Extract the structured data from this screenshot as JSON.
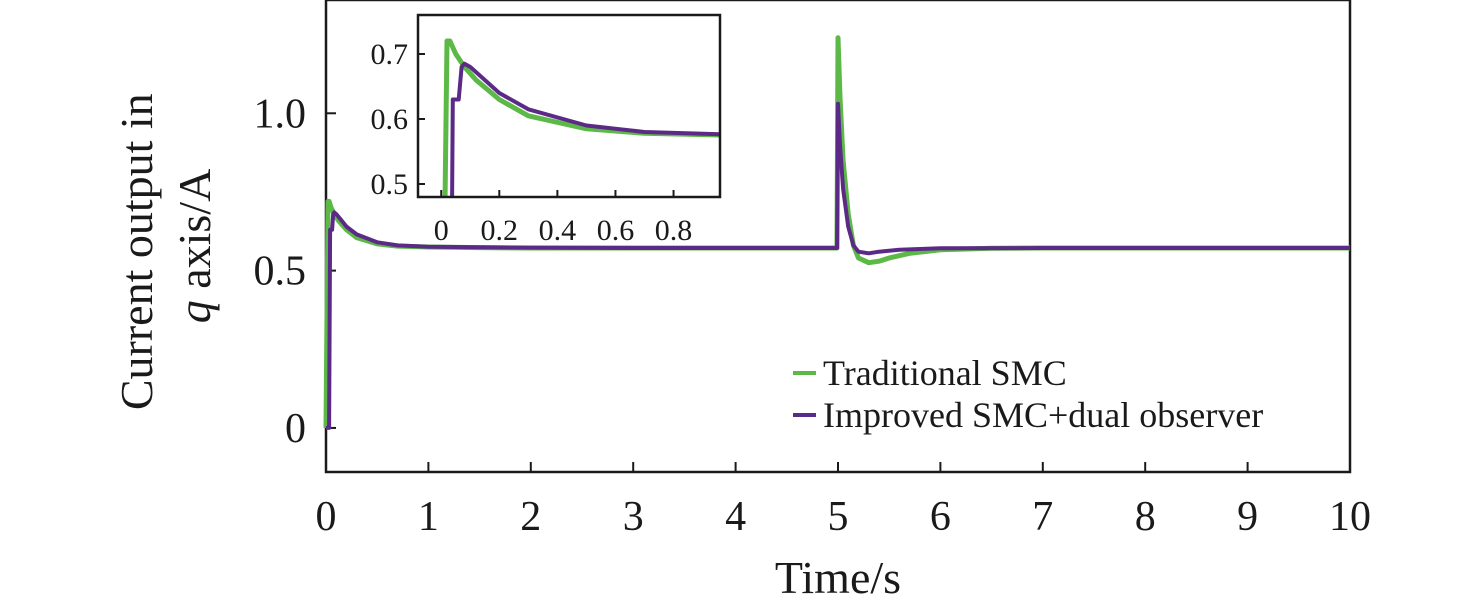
{
  "chart_data": {
    "type": "line",
    "xlabel": "Time/s",
    "ylabel": {
      "line1": "Current output in",
      "line2_italic": "q",
      "line2_rest": " axis/A"
    },
    "xlim": [
      0,
      10
    ],
    "ylim": [
      -0.14,
      1.36
    ],
    "x_ticks": [
      0,
      1,
      2,
      3,
      4,
      5,
      6,
      7,
      8,
      9,
      10
    ],
    "x_tick_labels": [
      "0",
      "1",
      "2",
      "3",
      "4",
      "5",
      "6",
      "7",
      "8",
      "9",
      "10"
    ],
    "y_ticks": [
      0,
      0.5,
      1.0
    ],
    "y_tick_labels": [
      "0",
      "0.5",
      "1.0"
    ],
    "grid": false,
    "legend_position": "bottom-right",
    "series": [
      {
        "name": "Traditional SMC",
        "color": "#5cb947",
        "x": [
          0,
          0.02,
          0.03,
          0.05,
          0.08,
          0.12,
          0.2,
          0.3,
          0.5,
          0.7,
          1.0,
          1.5,
          2,
          3,
          4,
          4.99,
          5.0,
          5.02,
          5.05,
          5.1,
          5.15,
          5.2,
          5.3,
          5.4,
          5.5,
          5.7,
          6.0,
          6.5,
          7,
          8,
          9,
          10
        ],
        "y": [
          0.0,
          0.72,
          0.72,
          0.7,
          0.68,
          0.66,
          0.63,
          0.605,
          0.585,
          0.578,
          0.575,
          0.573,
          0.572,
          0.572,
          0.572,
          0.572,
          1.24,
          1.05,
          0.85,
          0.68,
          0.58,
          0.54,
          0.525,
          0.53,
          0.54,
          0.555,
          0.566,
          0.571,
          0.572,
          0.572,
          0.572,
          0.572
        ]
      },
      {
        "name": "Improved SMC+dual observer",
        "color": "#5b2a86",
        "x": [
          0,
          0.03,
          0.04,
          0.06,
          0.07,
          0.08,
          0.1,
          0.15,
          0.2,
          0.3,
          0.5,
          0.7,
          1.0,
          1.5,
          2,
          3,
          4,
          4.99,
          5.0,
          5.02,
          5.05,
          5.1,
          5.15,
          5.2,
          5.3,
          5.4,
          5.6,
          6.0,
          7,
          8,
          9,
          10
        ],
        "y": [
          0.0,
          0.0,
          0.63,
          0.63,
          0.68,
          0.685,
          0.68,
          0.66,
          0.64,
          0.615,
          0.59,
          0.58,
          0.576,
          0.574,
          0.573,
          0.572,
          0.572,
          0.572,
          1.03,
          0.9,
          0.76,
          0.64,
          0.58,
          0.56,
          0.555,
          0.56,
          0.566,
          0.571,
          0.572,
          0.572,
          0.572,
          0.572
        ]
      }
    ],
    "inset": {
      "xlim": [
        -0.08,
        0.96
      ],
      "ylim": [
        0.48,
        0.76
      ],
      "x_ticks": [
        0,
        0.2,
        0.4,
        0.6,
        0.8
      ],
      "x_tick_labels": [
        "0",
        "0.2",
        "0.4",
        "0.6",
        "0.8"
      ],
      "y_ticks": [
        0.5,
        0.6,
        0.7
      ],
      "y_tick_labels": [
        "0.5",
        "0.6",
        "0.7"
      ]
    }
  }
}
